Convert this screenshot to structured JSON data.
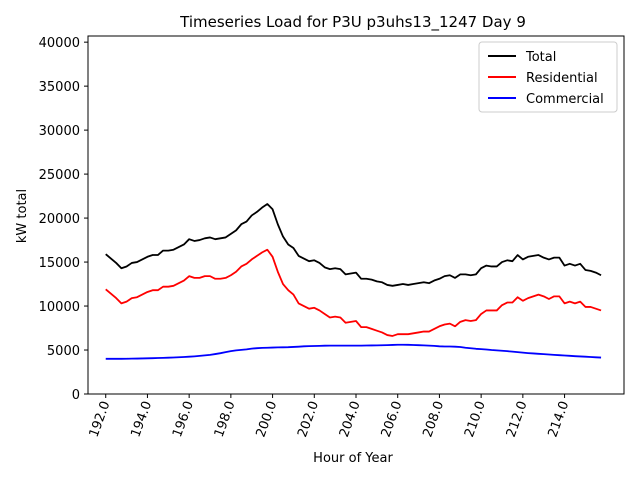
{
  "chart_data": {
    "type": "line",
    "title": "Timeseries Load for P3U p3uhs13_1247  Day 9",
    "xlabel": "Hour of Year",
    "ylabel": "kW total",
    "xlim": [
      191.15,
      216.85
    ],
    "ylim": [
      0,
      40700
    ],
    "x_ticks": [
      192,
      194,
      196,
      198,
      200,
      202,
      204,
      206,
      208,
      210,
      212,
      214
    ],
    "x_tick_labels": [
      "192.0",
      "194.0",
      "196.0",
      "198.0",
      "200.0",
      "202.0",
      "204.0",
      "206.0",
      "208.0",
      "210.0",
      "212.0",
      "214.0"
    ],
    "y_ticks": [
      0,
      5000,
      10000,
      15000,
      20000,
      25000,
      30000,
      35000,
      40000
    ],
    "y_tick_labels": [
      "0",
      "5000",
      "10000",
      "15000",
      "20000",
      "25000",
      "30000",
      "35000",
      "40000"
    ],
    "legend_position": "top-right",
    "grid": false,
    "x": [
      192.0,
      192.25,
      192.5,
      192.75,
      193.0,
      193.25,
      193.5,
      193.75,
      194.0,
      194.25,
      194.5,
      194.75,
      195.0,
      195.25,
      195.5,
      195.75,
      196.0,
      196.25,
      196.5,
      196.75,
      197.0,
      197.25,
      197.5,
      197.75,
      198.0,
      198.25,
      198.5,
      198.75,
      199.0,
      199.25,
      199.5,
      199.75,
      200.0,
      200.25,
      200.5,
      200.75,
      201.0,
      201.25,
      201.5,
      201.75,
      202.0,
      202.25,
      202.5,
      202.75,
      203.0,
      203.25,
      203.5,
      203.75,
      204.0,
      204.25,
      204.5,
      204.75,
      205.0,
      205.25,
      205.5,
      205.75,
      206.0,
      206.25,
      206.5,
      206.75,
      207.0,
      207.25,
      207.5,
      207.75,
      208.0,
      208.25,
      208.5,
      208.75,
      209.0,
      209.25,
      209.5,
      209.75,
      210.0,
      210.25,
      210.5,
      210.75,
      211.0,
      211.25,
      211.5,
      211.75,
      212.0,
      212.25,
      212.5,
      212.75,
      213.0,
      213.25,
      213.5,
      213.75,
      214.0,
      214.25,
      214.5,
      214.75,
      215.0,
      215.25,
      215.5,
      215.75
    ],
    "series": [
      {
        "name": "Total",
        "color": "#000000",
        "values": [
          15900,
          15400,
          14900,
          14300,
          14500,
          14900,
          15000,
          15300,
          15600,
          15800,
          15800,
          16300,
          16300,
          16400,
          16700,
          17000,
          17600,
          17400,
          17500,
          17700,
          17800,
          17600,
          17700,
          17800,
          18200,
          18600,
          19300,
          19600,
          20300,
          20700,
          21200,
          21600,
          21000,
          19300,
          17900,
          17000,
          16600,
          15700,
          15400,
          15100,
          15200,
          14900,
          14400,
          14200,
          14300,
          14200,
          13600,
          13700,
          13800,
          13100,
          13100,
          13000,
          12800,
          12700,
          12400,
          12300,
          12400,
          12500,
          12400,
          12500,
          12600,
          12700,
          12600,
          12900,
          13100,
          13400,
          13500,
          13200,
          13600,
          13600,
          13500,
          13600,
          14300,
          14600,
          14500,
          14500,
          15000,
          15200,
          15100,
          15800,
          15300,
          15600,
          15700,
          15800,
          15500,
          15300,
          15500,
          15500,
          14600,
          14800,
          14600,
          14800,
          14100,
          14000,
          13800,
          13500
        ]
      },
      {
        "name": "Residential",
        "color": "#ff0000",
        "values": [
          11900,
          11400,
          10900,
          10300,
          10500,
          10900,
          11000,
          11300,
          11600,
          11800,
          11800,
          12200,
          12200,
          12300,
          12600,
          12900,
          13400,
          13200,
          13200,
          13400,
          13400,
          13100,
          13100,
          13200,
          13500,
          13900,
          14500,
          14800,
          15300,
          15700,
          16100,
          16400,
          15600,
          13900,
          12500,
          11800,
          11300,
          10300,
          10000,
          9700,
          9800,
          9500,
          9100,
          8700,
          8800,
          8700,
          8100,
          8200,
          8300,
          7600,
          7600,
          7400,
          7200,
          7000,
          6700,
          6600,
          6800,
          6800,
          6800,
          6900,
          7000,
          7100,
          7100,
          7400,
          7700,
          7900,
          8000,
          7700,
          8200,
          8400,
          8300,
          8400,
          9100,
          9500,
          9500,
          9500,
          10100,
          10400,
          10400,
          11000,
          10600,
          10900,
          11100,
          11300,
          11100,
          10800,
          11100,
          11100,
          10300,
          10500,
          10300,
          10500,
          9900,
          9900,
          9700,
          9500
        ]
      },
      {
        "name": "Commercial",
        "color": "#0000ff",
        "values": [
          4000,
          4000,
          4000,
          4000,
          4010,
          4020,
          4030,
          4040,
          4060,
          4070,
          4090,
          4110,
          4130,
          4150,
          4180,
          4210,
          4240,
          4280,
          4330,
          4390,
          4450,
          4540,
          4640,
          4760,
          4870,
          4960,
          5020,
          5070,
          5160,
          5210,
          5240,
          5260,
          5280,
          5300,
          5310,
          5320,
          5350,
          5380,
          5420,
          5440,
          5460,
          5470,
          5490,
          5500,
          5500,
          5500,
          5500,
          5500,
          5500,
          5500,
          5510,
          5520,
          5530,
          5540,
          5560,
          5580,
          5600,
          5600,
          5590,
          5570,
          5550,
          5530,
          5500,
          5470,
          5420,
          5400,
          5400,
          5380,
          5340,
          5260,
          5200,
          5140,
          5100,
          5060,
          5000,
          4960,
          4920,
          4870,
          4820,
          4760,
          4700,
          4650,
          4610,
          4570,
          4530,
          4490,
          4450,
          4410,
          4380,
          4340,
          4300,
          4270,
          4240,
          4210,
          4170,
          4140
        ]
      }
    ]
  }
}
